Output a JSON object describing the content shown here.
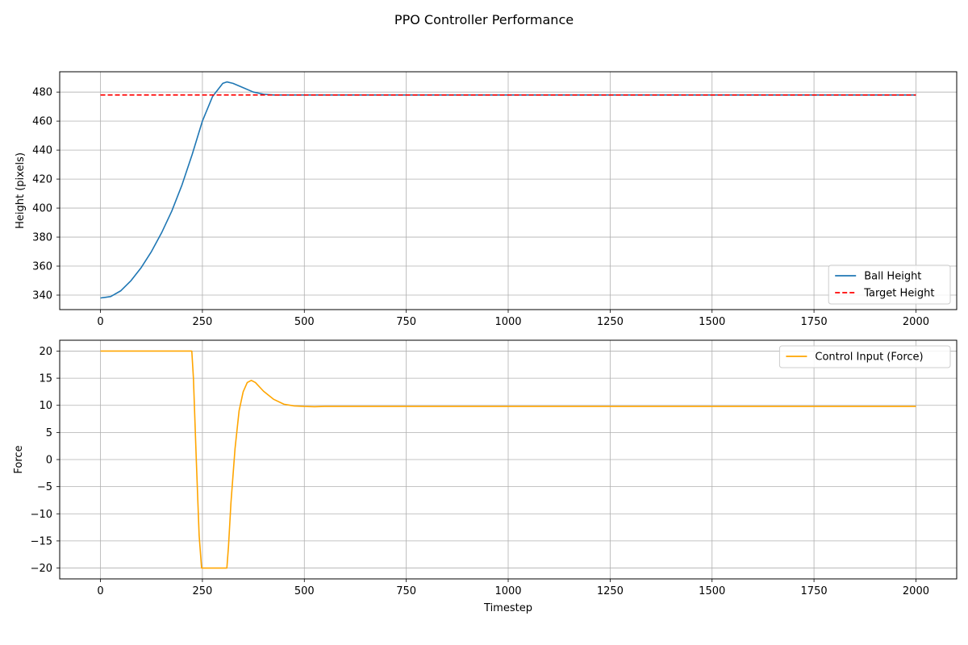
{
  "figure": {
    "title": "PPO Controller Performance"
  },
  "chart_data": [
    {
      "type": "line",
      "xlabel": "",
      "ylabel": "Height (pixels)",
      "xlim": [
        -100,
        2100
      ],
      "ylim": [
        330,
        494
      ],
      "xticks": [
        0,
        250,
        500,
        750,
        1000,
        1250,
        1500,
        1750,
        2000
      ],
      "yticks": [
        340,
        360,
        380,
        400,
        420,
        440,
        460,
        480
      ],
      "grid": true,
      "legend_position": "lower-right",
      "series": [
        {
          "name": "Ball Height",
          "color": "#1f77b4",
          "style": "solid",
          "x": [
            0,
            25,
            50,
            75,
            100,
            125,
            150,
            175,
            200,
            225,
            250,
            275,
            300,
            310,
            325,
            350,
            375,
            400,
            425,
            450,
            500,
            600,
            750,
            1000,
            1250,
            1500,
            1750,
            2000
          ],
          "y": [
            338,
            339,
            343,
            350,
            359,
            370,
            383,
            398,
            416,
            437,
            460,
            477,
            486,
            487,
            486,
            483,
            480,
            478.5,
            478,
            478,
            478,
            478,
            478,
            478,
            478,
            478,
            478,
            478
          ]
        },
        {
          "name": "Target Height",
          "color": "#ff0000",
          "style": "dashed",
          "x": [
            0,
            2000
          ],
          "y": [
            478,
            478
          ]
        }
      ]
    },
    {
      "type": "line",
      "xlabel": "Timestep",
      "ylabel": "Force",
      "xlim": [
        -100,
        2100
      ],
      "ylim": [
        -22,
        22
      ],
      "xticks": [
        0,
        250,
        500,
        750,
        1000,
        1250,
        1500,
        1750,
        2000
      ],
      "xtick_labels": [
        "0",
        "250",
        "500",
        "750",
        "1000",
        "1250",
        "1500",
        "1750",
        "2000"
      ],
      "yticks": [
        -20,
        -15,
        -10,
        -5,
        0,
        5,
        10,
        15,
        20
      ],
      "ytick_labels": [
        "−20",
        "−15",
        "−10",
        "−5",
        "0",
        "5",
        "10",
        "15",
        "20"
      ],
      "grid": true,
      "legend_position": "upper-right",
      "series": [
        {
          "name": "Control Input (Force)",
          "color": "#ffa500",
          "style": "solid",
          "x": [
            0,
            224,
            228,
            235,
            242,
            248,
            250,
            310,
            314,
            320,
            330,
            340,
            350,
            360,
            370,
            380,
            400,
            425,
            450,
            475,
            500,
            525,
            550,
            600,
            750,
            1000,
            1250,
            1500,
            1750,
            2000
          ],
          "y": [
            20,
            20,
            15,
            0,
            -14,
            -20,
            -20,
            -20,
            -16,
            -8,
            2,
            9,
            12.5,
            14.2,
            14.6,
            14.2,
            12.6,
            11.1,
            10.2,
            9.9,
            9.8,
            9.75,
            9.8,
            9.8,
            9.8,
            9.8,
            9.8,
            9.8,
            9.8,
            9.8
          ]
        }
      ]
    }
  ]
}
